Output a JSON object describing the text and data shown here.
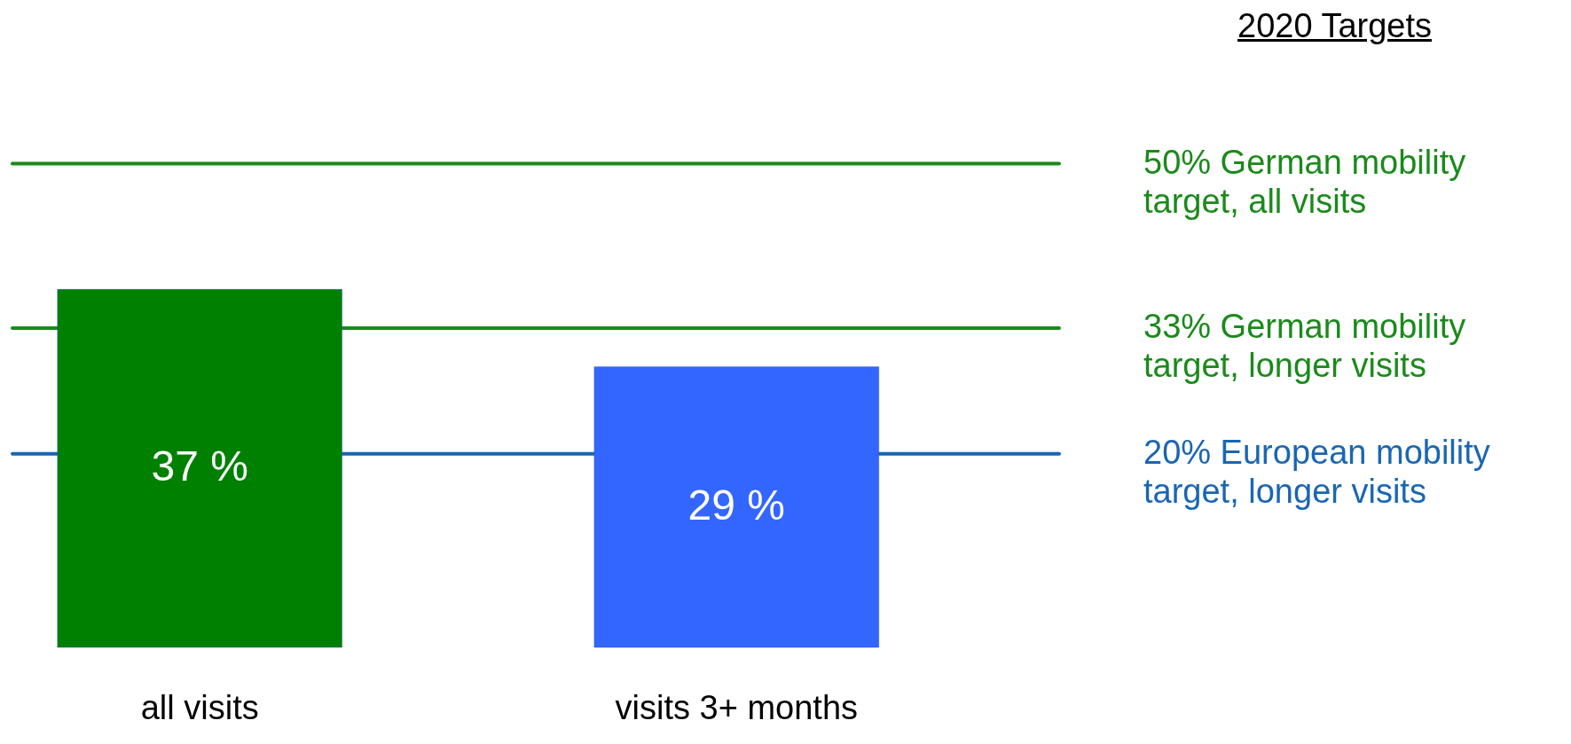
{
  "chart_data": {
    "type": "bar",
    "categories": [
      "all visits",
      "visits 3+ months"
    ],
    "values": [
      37,
      29
    ],
    "colors": [
      "#008000",
      "#3366ff"
    ],
    "value_labels": [
      "37 %",
      "29 %"
    ],
    "ref_lines": [
      {
        "axis": "y",
        "value": 50,
        "label": "50% German mobility target, all visits",
        "color": "#1a8a1a"
      },
      {
        "axis": "y",
        "value": 33,
        "label": "33% German mobility target, longer visits",
        "color": "#1a8a1a"
      },
      {
        "axis": "y",
        "value": 20,
        "label": "20% European mobility  target, longer visits",
        "color": "#1a66b3"
      }
    ],
    "annotations": [
      "2020 Targets"
    ]
  }
}
